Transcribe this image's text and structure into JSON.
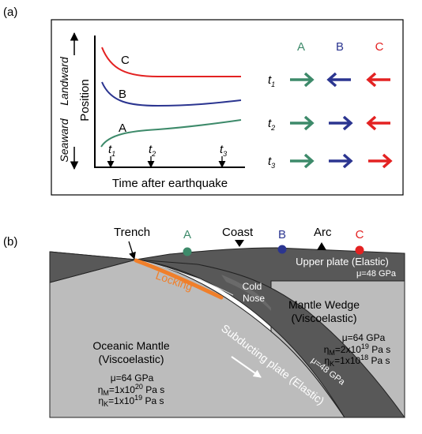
{
  "panel_a": {
    "label": "(a)",
    "y_axis_label": "Position",
    "landward_label": "Landward",
    "seaward_label": "Seaward",
    "x_axis_label": "Time after earthquake",
    "time_ticks": [
      {
        "t": "t",
        "sub": "1"
      },
      {
        "t": "t",
        "sub": "2"
      },
      {
        "t": "t",
        "sub": "3"
      }
    ],
    "curves": [
      {
        "name": "C",
        "color": "#e32222"
      },
      {
        "name": "B",
        "color": "#2b3590"
      },
      {
        "name": "A",
        "color": "#3d8a6a"
      }
    ],
    "arrow_columns": [
      {
        "name": "A",
        "color": "#3d8a6a"
      },
      {
        "name": "B",
        "color": "#2b3590"
      },
      {
        "name": "C",
        "color": "#e32222"
      }
    ],
    "arrow_rows": [
      {
        "t": "t",
        "sub": "1",
        "directions": [
          "right",
          "left",
          "left"
        ]
      },
      {
        "t": "t",
        "sub": "2",
        "directions": [
          "right",
          "right",
          "left"
        ]
      },
      {
        "t": "t",
        "sub": "3",
        "directions": [
          "right",
          "right",
          "right"
        ]
      }
    ]
  },
  "panel_b": {
    "label": "(b)",
    "trench_label": "Trench",
    "coast_label": "Coast",
    "arc_label": "Arc",
    "stations": [
      {
        "name": "A",
        "color": "#3d8a6a"
      },
      {
        "name": "B",
        "color": "#2b3590"
      },
      {
        "name": "C",
        "color": "#e32222"
      }
    ],
    "upper_plate": {
      "title": "Upper plate (Elastic)",
      "props": "μ=48 GPa"
    },
    "locking_label": "Locking",
    "locking_color": "#f07f2a",
    "cold_nose": [
      "Cold",
      "Nose"
    ],
    "mantle_wedge": {
      "title": [
        "Mantle Wedge",
        "(Viscoelastic)"
      ],
      "mu": "μ=64 GPa",
      "eta_m": {
        "pre": "η",
        "sub": "M",
        "mid": "=2x10",
        "sup": "19",
        "post": " Pa s"
      },
      "eta_k": {
        "pre": "η",
        "sub": "K",
        "mid": "=1x10",
        "sup": "18",
        "post": " Pa s"
      }
    },
    "oceanic_mantle": {
      "title": [
        "Oceanic Mantle",
        "(Viscoelastic)"
      ],
      "mu": "μ=64 GPa",
      "eta_m": {
        "pre": "η",
        "sub": "M",
        "mid": "=1x10",
        "sup": "20",
        "post": " Pa s"
      },
      "eta_k": {
        "pre": "η",
        "sub": "K",
        "mid": "=1x10",
        "sup": "19",
        "post": " Pa s"
      }
    },
    "slab": {
      "title": "Subducting plate (Elastic)",
      "props": "μ=48 GPa"
    },
    "colors": {
      "plate": "#585858",
      "mantle": "#bcbcbc",
      "text_on_dark": "#ffffff"
    }
  }
}
